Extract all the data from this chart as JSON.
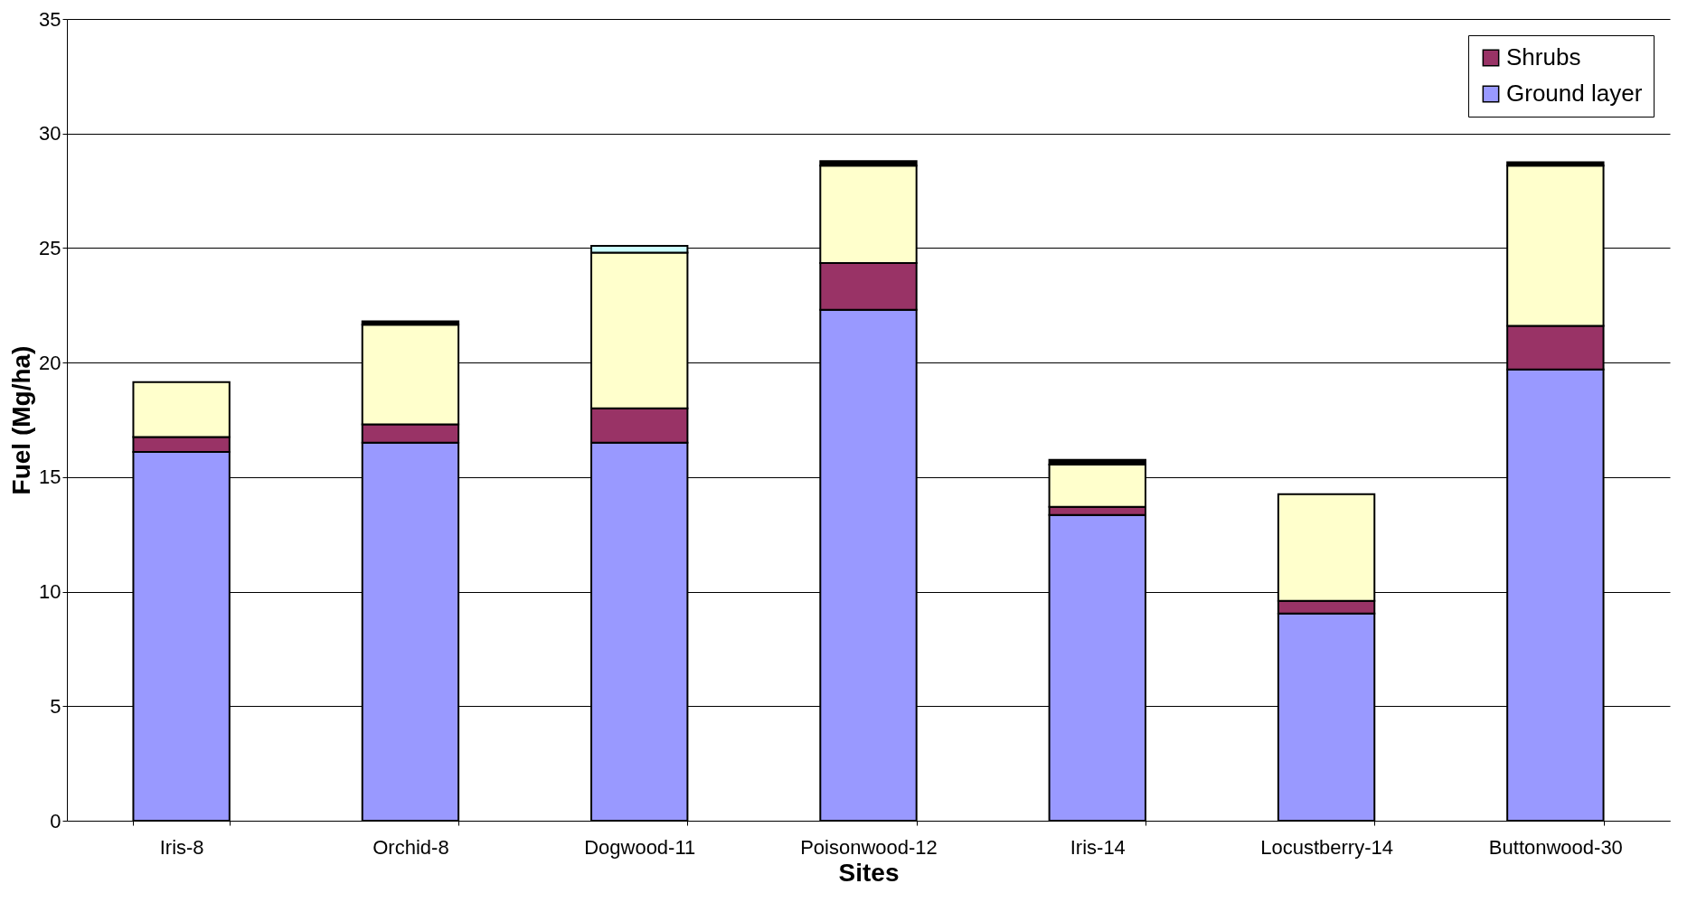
{
  "chart_data": {
    "type": "bar",
    "stacked": true,
    "xlabel": "Sites",
    "ylabel": "Fuel (Mg/ha)",
    "categories": [
      "Iris-8",
      "Orchid-8",
      "Dogwood-11",
      "Poisonwood-12",
      "Iris-14",
      "Locustberry-14",
      "Buttonwood-30"
    ],
    "series": [
      {
        "name": "Ground layer",
        "color": "#9999ff",
        "values": [
          16.1,
          16.5,
          16.5,
          22.3,
          13.35,
          9.05,
          19.7
        ]
      },
      {
        "name": "Shrubs",
        "color": "#993366",
        "values": [
          0.65,
          0.8,
          1.5,
          2.05,
          0.35,
          0.55,
          1.9
        ]
      },
      {
        "color": "#ffffcc",
        "values": [
          2.4,
          4.35,
          6.8,
          4.25,
          1.85,
          4.65,
          7.0
        ]
      },
      {
        "color": "#000000",
        "values": [
          null,
          0.15,
          null,
          0.2,
          0.2,
          null,
          0.15
        ]
      },
      {
        "color": "#ccffff",
        "values": [
          null,
          null,
          0.3,
          null,
          null,
          null,
          null
        ]
      }
    ],
    "ylim": [
      0,
      35
    ],
    "yticks": [
      0,
      5,
      10,
      15,
      20,
      25,
      30,
      35
    ],
    "grid": "y",
    "legend": "top right"
  }
}
